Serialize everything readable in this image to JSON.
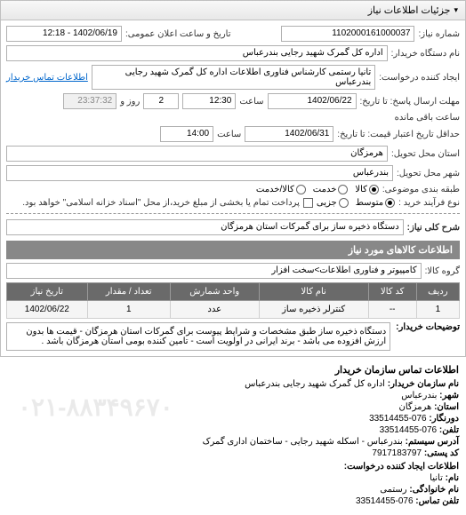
{
  "accordion": {
    "title": "جزئیات اطلاعات نیاز"
  },
  "form": {
    "request_number": {
      "label": "شماره نیاز:",
      "value": "1102000161000037"
    },
    "public_date": {
      "label": "تاریخ و ساعت اعلان عمومی:",
      "value": "1402/06/19 - 12:18"
    },
    "buyer_org": {
      "label": "نام دستگاه خریدار:",
      "value": "اداره کل گمرک شهید رجایی بندرعباس"
    },
    "requester": {
      "label": "ایجاد کننده درخواست:",
      "value": "تانیا رستمی کارشناس فناوری اطلاعات اداره کل گمرک شهید رجایی بندرعباس",
      "contact_link": "اطلاعات تماس خریدار"
    },
    "deadline": {
      "label": "مهلت ارسال پاسخ: تا تاریخ:",
      "date": "1402/06/22",
      "time_label": "ساعت",
      "time": "12:30",
      "count": "2",
      "days_label": "روز و",
      "countdown": "23:37:32",
      "remaining_label": "ساعت باقی مانده"
    },
    "bid_end": {
      "label": "حداقل تاریخ اعتبار قیمت: تا تاریخ:",
      "date": "1402/06/31",
      "time_label": "ساعت",
      "time": "14:00"
    },
    "province": {
      "label": "استان محل تحویل:",
      "value": "هرمزگان"
    },
    "city": {
      "label": "شهر محل تحویل:",
      "value": "بندرعباس"
    },
    "category": {
      "label": "طبقه بندی موضوعی:",
      "options": {
        "goods": "کالا",
        "service": "خدمت",
        "goods_service": "کالا/خدمت"
      }
    },
    "process_type": {
      "label": "نوع فرآیند خرید :",
      "options": {
        "medium": "متوسط",
        "partial": "جزیی"
      },
      "note": "پرداخت تمام یا بخشی از مبلغ خرید،از محل \"اسناد خزانه اسلامی\" خواهد بود."
    },
    "general_desc": {
      "label": "شرح کلی نیاز:",
      "value": "دستگاه ذخیره ساز برای گمرکات استان هرمزگان"
    }
  },
  "items_section": {
    "title": "اطلاعات کالاهای مورد نیاز",
    "group_label": "گروه کالا:",
    "group_value": "کامپیوتر و فناوری اطلاعات>سخت افزار",
    "table": {
      "columns": [
        "ردیف",
        "کد کالا",
        "نام کالا",
        "واحد شمارش",
        "تعداد / مقدار",
        "تاریخ نیاز"
      ],
      "rows": [
        [
          "1",
          "--",
          "کنترلر ذخیره ساز",
          "عدد",
          "1",
          "1402/06/22"
        ]
      ]
    },
    "description": {
      "label": "توضیحات خریدار:",
      "text": "دستگاه ذخیره ساز طبق مشخصات و شرایط پیوست برای گمرکات استان هرمزگان - قیمت ها بدون ارزش افزوده می باشد - برند ایرانی در اولویت است - تامین کننده بومی استان هرمزگان باشد ."
    }
  },
  "contact": {
    "title": "اطلاعات تماس سازمان خریدار",
    "org_name": {
      "label": "نام سازمان خریدار:",
      "value": "اداره کل گمرک شهید رجایی بندرعباس"
    },
    "city": {
      "label": "شهر:",
      "value": "بندرعباس"
    },
    "province": {
      "label": "استان:",
      "value": "هرمزگان"
    },
    "fax": {
      "label": "دورنگار:",
      "value": "076-33514455"
    },
    "phone": {
      "label": "تلفن:",
      "value": "076-33514455"
    },
    "address": {
      "label": "آدرس سیستم:",
      "value": "بندرعباس - اسکله شهید رجایی - ساختمان اداری گمرک"
    },
    "postal": {
      "label": "کد پستی:",
      "value": "7917183797"
    },
    "requester_section": "اطلاعات ایجاد کننده درخواست:",
    "person_name": {
      "label": "نام:",
      "value": "تانیا"
    },
    "person_family": {
      "label": "نام خانوادگی:",
      "value": "رستمی"
    },
    "person_phone": {
      "label": "تلفن تماس:",
      "value": "076-33514455"
    }
  },
  "watermark": "۰۲۱-۸۸۳۴۹۶۷۰"
}
